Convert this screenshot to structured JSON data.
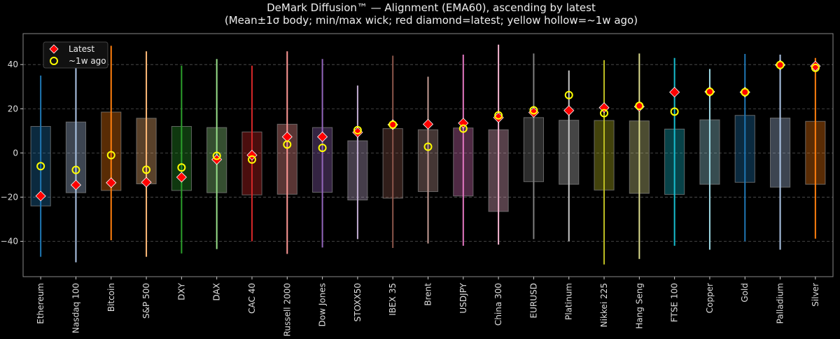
{
  "chart_data": {
    "type": "box",
    "title": "DeMark Diffusion™ — Alignment (EMA60), ascending by latest",
    "subtitle": "(Mean±1σ body; min/max wick; red diamond=latest; yellow hollow=~1w ago)",
    "xlabel": "",
    "ylabel": "",
    "ylim": [
      -56,
      54
    ],
    "yticks": [
      -40,
      -20,
      0,
      20,
      40
    ],
    "grid": "horizontal dashed",
    "legend": {
      "placement": "top-left",
      "entries": [
        "Latest",
        "~1w ago"
      ]
    },
    "colors": {
      "latest": "#ff0000",
      "week_ago": "#ffff00",
      "background": "#000000",
      "text": "#dddddd"
    },
    "categories": [
      "Ethereum",
      "Nasdaq 100",
      "Bitcoin",
      "S&P 500",
      "DXY",
      "DAX",
      "CAC 40",
      "Russell 2000",
      "Dow Jones",
      "STOXX50",
      "IBEX 35",
      "Brent",
      "USDJPY",
      "China 300",
      "EURUSD",
      "Platinum",
      "Nikkei 225",
      "Hang Seng",
      "FTSE 100",
      "Copper",
      "Gold",
      "Palladium",
      "Silver"
    ],
    "series_colors": [
      "#1f77b4",
      "#aec7e8",
      "#ff7f0e",
      "#ffbb78",
      "#2ca02c",
      "#98df8a",
      "#d62728",
      "#ff9896",
      "#9467bd",
      "#c5b0d5",
      "#8c564b",
      "#c49c94",
      "#e377c2",
      "#f7b6d2",
      "#7f7f7f",
      "#c7c7c7",
      "#bcbd22",
      "#dbdb8d",
      "#17becf",
      "#9edae5",
      "#1f77b4",
      "#aec7e8",
      "#ff7f0e"
    ],
    "body_high": [
      12,
      14,
      18.5,
      15.7,
      12,
      11.5,
      9.5,
      13,
      11.5,
      5.5,
      11,
      10.5,
      11.3,
      10.5,
      16,
      14.8,
      14.7,
      14.5,
      10.8,
      15,
      17,
      15.8,
      14.3
    ],
    "body_low": [
      -24,
      -18,
      -17,
      -14,
      -17,
      -18,
      -19,
      -18.7,
      -17.8,
      -21.3,
      -20.5,
      -17.5,
      -19.5,
      -26.5,
      -13,
      -14.2,
      -16.8,
      -18.3,
      -18.8,
      -14.2,
      -13.3,
      -15.5,
      -14.2
    ],
    "wick_max": [
      35,
      42,
      48.5,
      46,
      39.5,
      42.5,
      39.5,
      46,
      42.5,
      30.5,
      44,
      34.5,
      44.5,
      49,
      45,
      37.3,
      42,
      45,
      43,
      38,
      44.8,
      44.5,
      43
    ],
    "wick_min": [
      -47,
      -49.5,
      -39.5,
      -47,
      -45.5,
      -43.5,
      -40,
      -45.7,
      -42.8,
      -39,
      -43,
      -41,
      -42,
      -41.5,
      -39,
      -40,
      -50.5,
      -48,
      -42,
      -43.8,
      -40,
      -43.8,
      -38.8
    ],
    "latest": [
      -19.5,
      -14.5,
      -13.5,
      -13.3,
      -11,
      -3,
      -1,
      7.3,
      7.3,
      9.3,
      12.8,
      13,
      13.5,
      16,
      18.3,
      19.2,
      20.5,
      21,
      27.5,
      27.7,
      27.5,
      39.8,
      39.3
    ],
    "week_ago": [
      -6,
      -7.7,
      -1,
      -7.6,
      -6.6,
      -1.3,
      -3,
      3.8,
      2.3,
      10.3,
      12.8,
      2.8,
      11,
      17,
      19.3,
      26.2,
      18,
      21.3,
      18.7,
      27.7,
      27.5,
      39.8,
      38.5
    ]
  }
}
